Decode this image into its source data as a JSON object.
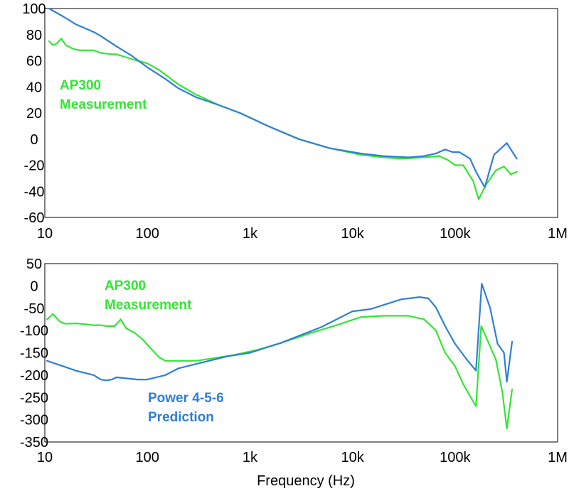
{
  "colors": {
    "green": "#33e633",
    "blue": "#2f7fd4",
    "axis": "#000000"
  },
  "x_title": "Frequency (Hz)",
  "chart_data": [
    {
      "type": "line",
      "xscale": "log",
      "xlim": [
        10,
        1000000
      ],
      "ylim": [
        -60,
        100
      ],
      "x_ticks": [
        {
          "value": 10,
          "label": "10"
        },
        {
          "value": 100,
          "label": "100"
        },
        {
          "value": 1000,
          "label": "1k"
        },
        {
          "value": 10000,
          "label": "10k"
        },
        {
          "value": 100000,
          "label": "100k"
        },
        {
          "value": 1000000,
          "label": "1M"
        }
      ],
      "y_ticks": [
        100,
        80,
        60,
        40,
        20,
        0,
        -20,
        -40,
        -60
      ],
      "annotations": [
        {
          "lines": [
            "AP300",
            "Measurement"
          ],
          "color": "green"
        }
      ],
      "series": [
        {
          "color": "green",
          "points": [
            [
              11,
              75
            ],
            [
              12,
              72
            ],
            [
              13,
              73
            ],
            [
              14.5,
              77
            ],
            [
              16,
              72
            ],
            [
              19,
              69
            ],
            [
              22,
              68
            ],
            [
              30,
              68
            ],
            [
              35,
              66
            ],
            [
              45,
              65
            ],
            [
              50,
              65
            ],
            [
              60,
              63
            ],
            [
              80,
              60
            ],
            [
              100,
              58
            ],
            [
              130,
              53
            ],
            [
              200,
              42
            ],
            [
              300,
              34
            ],
            [
              500,
              26
            ],
            [
              800,
              20
            ],
            [
              1500,
              10
            ],
            [
              3000,
              0
            ],
            [
              6000,
              -7
            ],
            [
              12000,
              -12
            ],
            [
              20000,
              -14
            ],
            [
              30000,
              -15
            ],
            [
              50000,
              -14
            ],
            [
              70000,
              -13
            ],
            [
              85000,
              -16
            ],
            [
              100000,
              -20
            ],
            [
              120000,
              -20
            ],
            [
              150000,
              -32
            ],
            [
              170000,
              -46
            ],
            [
              200000,
              -35
            ],
            [
              250000,
              -24
            ],
            [
              300000,
              -21
            ],
            [
              350000,
              -27
            ],
            [
              400000,
              -25
            ]
          ]
        },
        {
          "color": "blue",
          "points": [
            [
              11,
              100
            ],
            [
              15,
              94
            ],
            [
              20,
              88
            ],
            [
              30,
              82
            ],
            [
              35,
              79
            ],
            [
              50,
              71
            ],
            [
              70,
              64
            ],
            [
              100,
              55
            ],
            [
              150,
              46
            ],
            [
              200,
              39
            ],
            [
              300,
              32
            ],
            [
              500,
              26
            ],
            [
              800,
              20
            ],
            [
              1500,
              10
            ],
            [
              3000,
              0
            ],
            [
              6000,
              -7
            ],
            [
              12000,
              -11
            ],
            [
              20000,
              -13
            ],
            [
              35000,
              -14
            ],
            [
              50000,
              -13
            ],
            [
              65000,
              -11
            ],
            [
              80000,
              -8
            ],
            [
              95000,
              -10
            ],
            [
              110000,
              -10
            ],
            [
              140000,
              -15
            ],
            [
              160000,
              -25
            ],
            [
              195000,
              -37
            ],
            [
              240000,
              -12
            ],
            [
              300000,
              -5
            ],
            [
              320000,
              -3
            ],
            [
              350000,
              -8
            ],
            [
              400000,
              -15
            ]
          ]
        }
      ]
    },
    {
      "type": "line",
      "xscale": "log",
      "xlim": [
        10,
        1000000
      ],
      "ylim": [
        -350,
        50
      ],
      "x_ticks": [
        {
          "value": 10,
          "label": "10"
        },
        {
          "value": 100,
          "label": "100"
        },
        {
          "value": 1000,
          "label": "1k"
        },
        {
          "value": 10000,
          "label": "10k"
        },
        {
          "value": 100000,
          "label": "100k"
        },
        {
          "value": 1000000,
          "label": "1M"
        }
      ],
      "y_ticks": [
        50,
        0,
        -50,
        -100,
        -150,
        -200,
        -250,
        -300,
        -350
      ],
      "annotations": [
        {
          "lines": [
            "AP300",
            "Measurement"
          ],
          "color": "green"
        },
        {
          "lines": [
            "Power 4-5-6",
            "Prediction"
          ],
          "color": "blue"
        }
      ],
      "series": [
        {
          "color": "green",
          "points": [
            [
              10.5,
              -75
            ],
            [
              12,
              -63
            ],
            [
              14,
              -80
            ],
            [
              16,
              -85
            ],
            [
              20,
              -84
            ],
            [
              25,
              -86
            ],
            [
              30,
              -88
            ],
            [
              35,
              -88
            ],
            [
              40,
              -90
            ],
            [
              48,
              -90
            ],
            [
              55,
              -75
            ],
            [
              62,
              -95
            ],
            [
              75,
              -105
            ],
            [
              90,
              -120
            ],
            [
              110,
              -142
            ],
            [
              130,
              -160
            ],
            [
              150,
              -168
            ],
            [
              300,
              -168
            ],
            [
              700,
              -155
            ],
            [
              1200,
              -143
            ],
            [
              2000,
              -128
            ],
            [
              4000,
              -105
            ],
            [
              7000,
              -88
            ],
            [
              12000,
              -70
            ],
            [
              20000,
              -67
            ],
            [
              35000,
              -67
            ],
            [
              50000,
              -75
            ],
            [
              65000,
              -100
            ],
            [
              80000,
              -150
            ],
            [
              100000,
              -180
            ],
            [
              120000,
              -220
            ],
            [
              160000,
              -270
            ],
            [
              180000,
              -90
            ],
            [
              250000,
              -165
            ],
            [
              290000,
              -240
            ],
            [
              320000,
              -320
            ],
            [
              360000,
              -232
            ]
          ]
        },
        {
          "color": "blue",
          "points": [
            [
              10.5,
              -168
            ],
            [
              15,
              -180
            ],
            [
              20,
              -190
            ],
            [
              30,
              -200
            ],
            [
              35,
              -210
            ],
            [
              40,
              -212
            ],
            [
              45,
              -210
            ],
            [
              50,
              -205
            ],
            [
              80,
              -210
            ],
            [
              100,
              -210
            ],
            [
              150,
              -200
            ],
            [
              200,
              -185
            ],
            [
              300,
              -175
            ],
            [
              600,
              -158
            ],
            [
              1000,
              -150
            ],
            [
              2000,
              -128
            ],
            [
              5000,
              -92
            ],
            [
              10000,
              -57
            ],
            [
              15000,
              -52
            ],
            [
              30000,
              -30
            ],
            [
              45000,
              -25
            ],
            [
              55000,
              -28
            ],
            [
              65000,
              -48
            ],
            [
              80000,
              -90
            ],
            [
              100000,
              -130
            ],
            [
              130000,
              -165
            ],
            [
              160000,
              -190
            ],
            [
              182000,
              5
            ],
            [
              220000,
              -50
            ],
            [
              260000,
              -130
            ],
            [
              300000,
              -150
            ],
            [
              320000,
              -215
            ],
            [
              360000,
              -125
            ]
          ]
        }
      ]
    }
  ]
}
